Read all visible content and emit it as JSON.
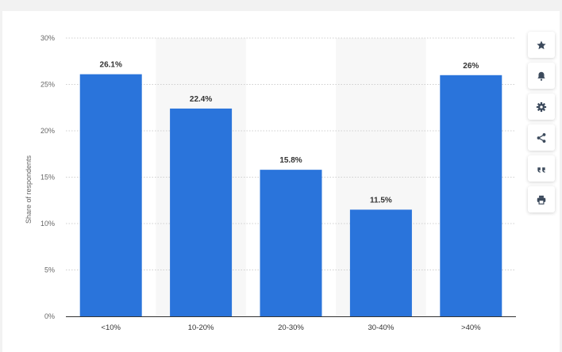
{
  "colors": {
    "bar": "#2a74db",
    "band": "#f7f7f7",
    "grid": "#cfcfcf",
    "axis": "#333333",
    "icon": "#3c4a5c"
  },
  "toolbar": {
    "icons": [
      "star-icon",
      "bell-icon",
      "gear-icon",
      "share-icon",
      "quote-icon",
      "print-icon"
    ]
  },
  "chart_data": {
    "type": "bar",
    "categories": [
      "<10%",
      "10-20%",
      "20-30%",
      "30-40%",
      ">40%"
    ],
    "values": [
      26.1,
      22.4,
      15.8,
      11.5,
      26
    ],
    "data_labels": [
      "26.1%",
      "22.4%",
      "15.8%",
      "11.5%",
      "26%"
    ],
    "ylabel": "Share of respondents",
    "xlabel": "",
    "ylim": [
      0,
      30
    ],
    "yticks": [
      "0%",
      "5%",
      "10%",
      "15%",
      "20%",
      "25%",
      "30%"
    ],
    "grid": true,
    "legend": "none"
  }
}
